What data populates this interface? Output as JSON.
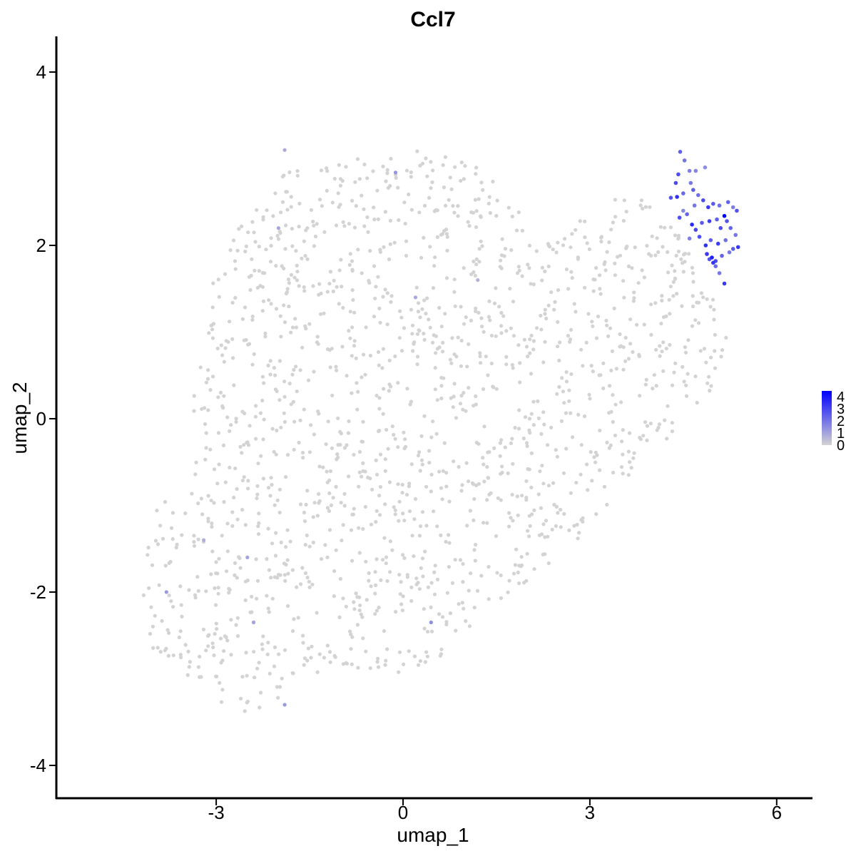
{
  "chart_data": {
    "type": "scatter",
    "title": "Ccl7",
    "xlabel": "umap_1",
    "ylabel": "umap_2",
    "xlim": [
      -5.63,
      6.5
    ],
    "ylim": [
      -4.4,
      4.4
    ],
    "x_ticks": [
      -3,
      0,
      3,
      6
    ],
    "y_ticks": [
      -4,
      -2,
      0,
      2,
      4
    ],
    "x_tick_labels": [
      "-3",
      "0",
      "3",
      "6"
    ],
    "y_tick_labels": [
      "-4",
      "-2",
      "0",
      "2",
      "4"
    ],
    "grid": false,
    "legend": {
      "placement": "right",
      "type": "colorbar",
      "labels": [
        "4",
        "3",
        "2",
        "1",
        "0"
      ],
      "values": [
        4,
        3,
        2,
        1,
        0
      ],
      "color_low": "#D3D3D3",
      "color_high": "#0000FF"
    },
    "background_cells": {
      "description_of_region": "approx. 1600 cells with expression 0 (light grey)",
      "count": 1600,
      "expression": 0,
      "region_polygon": [
        [
          -4.8,
          -1.2
        ],
        [
          -4.1,
          -1.4
        ],
        [
          -3.9,
          -0.9
        ],
        [
          -3.5,
          -0.6
        ],
        [
          -3.4,
          0.2
        ],
        [
          -3.2,
          0.8
        ],
        [
          -3.1,
          1.5
        ],
        [
          -2.9,
          2.0
        ],
        [
          -2.3,
          2.6
        ],
        [
          -1.8,
          2.9
        ],
        [
          -1.1,
          3.0
        ],
        [
          -0.3,
          3.0
        ],
        [
          0.2,
          3.1
        ],
        [
          0.8,
          3.0
        ],
        [
          1.5,
          2.9
        ],
        [
          1.8,
          2.5
        ],
        [
          2.1,
          2.0
        ],
        [
          2.6,
          2.1
        ],
        [
          3.0,
          2.4
        ],
        [
          3.5,
          2.6
        ],
        [
          4.0,
          2.5
        ],
        [
          4.4,
          2.3
        ],
        [
          4.6,
          1.9
        ],
        [
          5.0,
          1.5
        ],
        [
          5.2,
          1.0
        ],
        [
          5.2,
          0.5
        ],
        [
          4.8,
          0.2
        ],
        [
          4.3,
          -0.2
        ],
        [
          3.8,
          -0.6
        ],
        [
          3.4,
          -0.9
        ],
        [
          2.8,
          -1.4
        ],
        [
          2.3,
          -1.7
        ],
        [
          1.6,
          -2.1
        ],
        [
          0.9,
          -2.5
        ],
        [
          0.6,
          -2.9
        ],
        [
          0.0,
          -3.0
        ],
        [
          -0.6,
          -2.9
        ],
        [
          -1.2,
          -2.9
        ],
        [
          -1.7,
          -3.0
        ],
        [
          -2.0,
          -3.3
        ],
        [
          -2.4,
          -3.5
        ],
        [
          -2.8,
          -3.4
        ],
        [
          -3.1,
          -3.1
        ],
        [
          -3.5,
          -3.0
        ],
        [
          -3.9,
          -2.8
        ],
        [
          -4.2,
          -2.5
        ],
        [
          -4.3,
          -2.0
        ],
        [
          -4.1,
          -1.5
        ],
        [
          -4.4,
          -1.3
        ]
      ]
    },
    "series": [
      {
        "values": [
          [
            4.45,
            3.08,
            2.2
          ],
          [
            4.52,
            2.98,
            1.8
          ],
          [
            4.42,
            2.82,
            2.5
          ],
          [
            4.6,
            2.86,
            1.6
          ],
          [
            4.7,
            2.86,
            1.5
          ],
          [
            4.85,
            2.9,
            1.3
          ],
          [
            4.38,
            2.72,
            2.6
          ],
          [
            4.4,
            2.56,
            3.1
          ],
          [
            4.3,
            2.55,
            2.4
          ],
          [
            4.5,
            2.6,
            2.0
          ],
          [
            4.62,
            2.72,
            1.7
          ],
          [
            4.66,
            2.64,
            2.2
          ],
          [
            4.74,
            2.58,
            1.9
          ],
          [
            4.82,
            2.52,
            2.6
          ],
          [
            4.9,
            2.44,
            2.9
          ],
          [
            4.98,
            2.48,
            2.3
          ],
          [
            5.08,
            2.46,
            1.9
          ],
          [
            5.22,
            2.5,
            2.1
          ],
          [
            5.3,
            2.44,
            1.6
          ],
          [
            5.36,
            2.4,
            2.4
          ],
          [
            5.16,
            2.34,
            4.0
          ],
          [
            4.44,
            2.32,
            2.5
          ],
          [
            4.56,
            2.36,
            2.1
          ],
          [
            4.64,
            2.24,
            3.2
          ],
          [
            4.7,
            2.18,
            2.7
          ],
          [
            4.8,
            2.26,
            2.3
          ],
          [
            4.92,
            2.28,
            2.8
          ],
          [
            5.04,
            2.3,
            2.2
          ],
          [
            5.1,
            2.2,
            2.6
          ],
          [
            5.26,
            2.2,
            2.1
          ],
          [
            5.34,
            2.12,
            1.8
          ],
          [
            4.6,
            2.08,
            1.6
          ],
          [
            4.76,
            2.1,
            2.5
          ],
          [
            4.86,
            2.0,
            3.1
          ],
          [
            4.94,
            2.06,
            2.2
          ],
          [
            5.06,
            2.02,
            2.8
          ],
          [
            5.18,
            2.06,
            1.9
          ],
          [
            5.3,
            1.96,
            2.3
          ],
          [
            5.38,
            1.98,
            2.9
          ],
          [
            4.88,
            1.9,
            2.9
          ],
          [
            4.96,
            1.86,
            3.4
          ],
          [
            5.02,
            1.82,
            2.6
          ],
          [
            5.12,
            1.88,
            2.1
          ],
          [
            5.24,
            1.92,
            1.7
          ],
          [
            4.92,
            1.84,
            2.4
          ],
          [
            5.02,
            1.76,
            2.0
          ],
          [
            5.08,
            1.68,
            1.7
          ],
          [
            5.16,
            1.56,
            2.9
          ],
          [
            4.98,
            1.8,
            3.0
          ],
          [
            4.5,
            2.4,
            1.4
          ],
          [
            4.68,
            2.46,
            1.8
          ],
          [
            5.2,
            2.28,
            2.4
          ]
        ]
      }
    ],
    "sparse_expressing_cells": [
      [
        -0.12,
        2.84,
        1.2
      ],
      [
        -1.9,
        3.1,
        0.8
      ],
      [
        -2.0,
        2.2,
        0.9
      ],
      [
        0.2,
        1.4,
        0.8
      ],
      [
        -2.5,
        -1.6,
        0.9
      ],
      [
        -3.8,
        -2.0,
        1.1
      ],
      [
        -2.4,
        -2.35,
        0.8
      ],
      [
        -1.9,
        -3.3,
        1.1
      ],
      [
        0.45,
        -2.35,
        1.3
      ],
      [
        -3.2,
        -1.4,
        0.7
      ],
      [
        -2.4,
        -2.35,
        0.9
      ],
      [
        1.2,
        1.6,
        0.6
      ]
    ]
  }
}
